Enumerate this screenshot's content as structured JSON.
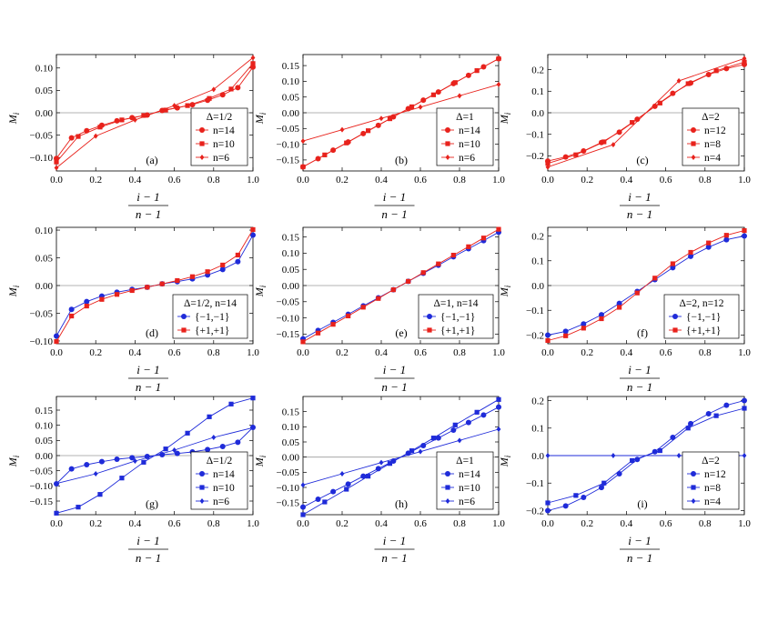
{
  "colors": {
    "red": "#e8221c",
    "blue": "#1f2bd9",
    "axis": "#000000",
    "zero": "#9a9a9a"
  },
  "ylabel": "M",
  "ylabel_sub": "i",
  "xlabel_num": "i − 1",
  "xlabel_den": "n − 1",
  "chart_data": [
    {
      "type": "line",
      "panel_label": "(a)",
      "xlim": [
        0,
        1
      ],
      "ylim": [
        -0.13,
        0.13
      ],
      "xticks": [
        "0.0",
        "0.2",
        "0.4",
        "0.6",
        "0.8",
        "1.0"
      ],
      "xtick_vals": [
        0,
        0.2,
        0.4,
        0.6,
        0.8,
        1.0
      ],
      "yticks": [
        "−0.10",
        "−0.05",
        "0.00",
        "0.05",
        "0.10"
      ],
      "ytick_vals": [
        -0.1,
        -0.05,
        0,
        0.05,
        0.1
      ],
      "legend_title": "Δ=1/2",
      "legend_pos": "bottom-right",
      "color": "red",
      "series": [
        {
          "name": "n=14",
          "marker": "circle",
          "x": [
            0,
            0.077,
            0.154,
            0.231,
            0.308,
            0.385,
            0.462,
            0.538,
            0.615,
            0.692,
            0.769,
            0.846,
            0.923,
            1.0
          ],
          "y": [
            -0.102,
            -0.056,
            -0.04,
            -0.028,
            -0.018,
            -0.011,
            -0.005,
            0.005,
            0.011,
            0.018,
            0.028,
            0.04,
            0.056,
            0.102
          ]
        },
        {
          "name": "n=10",
          "marker": "square",
          "x": [
            0,
            0.111,
            0.222,
            0.333,
            0.444,
            0.556,
            0.667,
            0.778,
            0.889,
            1.0
          ],
          "y": [
            -0.11,
            -0.053,
            -0.032,
            -0.016,
            -0.006,
            0.006,
            0.016,
            0.032,
            0.053,
            0.11
          ]
        },
        {
          "name": "n=6",
          "marker": "diamond",
          "x": [
            0,
            0.2,
            0.4,
            0.6,
            0.8,
            1.0
          ],
          "y": [
            -0.123,
            -0.052,
            -0.016,
            0.016,
            0.052,
            0.123
          ]
        }
      ]
    },
    {
      "type": "line",
      "panel_label": "(b)",
      "xlim": [
        0,
        1
      ],
      "ylim": [
        -0.185,
        0.185
      ],
      "xticks": [
        "0.0",
        "0.2",
        "0.4",
        "0.6",
        "0.8",
        "1.0"
      ],
      "xtick_vals": [
        0,
        0.2,
        0.4,
        0.6,
        0.8,
        1.0
      ],
      "yticks": [
        "−0.15",
        "−0.10",
        "−0.05",
        "0.00",
        "0.05",
        "0.10",
        "0.15"
      ],
      "ytick_vals": [
        -0.15,
        -0.1,
        -0.05,
        0,
        0.05,
        0.1,
        0.15
      ],
      "legend_title": "Δ=1",
      "legend_pos": "bottom-right",
      "color": "red",
      "series": [
        {
          "name": "n=14",
          "marker": "circle",
          "x": [
            0,
            0.077,
            0.154,
            0.231,
            0.308,
            0.385,
            0.462,
            0.538,
            0.615,
            0.692,
            0.769,
            0.846,
            0.923,
            1.0
          ],
          "y": [
            -0.172,
            -0.146,
            -0.119,
            -0.093,
            -0.066,
            -0.04,
            -0.013,
            0.013,
            0.04,
            0.066,
            0.093,
            0.119,
            0.146,
            0.172
          ]
        },
        {
          "name": "n=10",
          "marker": "square",
          "x": [
            0,
            0.111,
            0.222,
            0.333,
            0.444,
            0.556,
            0.667,
            0.778,
            0.889,
            1.0
          ],
          "y": [
            -0.172,
            -0.134,
            -0.096,
            -0.057,
            -0.019,
            0.019,
            0.057,
            0.096,
            0.134,
            0.172
          ]
        },
        {
          "name": "n=6",
          "marker": "diamond",
          "x": [
            0,
            0.2,
            0.4,
            0.6,
            0.8,
            1.0
          ],
          "y": [
            -0.09,
            -0.054,
            -0.018,
            0.018,
            0.054,
            0.09
          ]
        }
      ]
    },
    {
      "type": "line",
      "panel_label": "(c)",
      "xlim": [
        0,
        1
      ],
      "ylim": [
        -0.27,
        0.27
      ],
      "xticks": [
        "0.0",
        "0.2",
        "0.4",
        "0.6",
        "0.8",
        "1.0"
      ],
      "xtick_vals": [
        0,
        0.2,
        0.4,
        0.6,
        0.8,
        1.0
      ],
      "yticks": [
        "−0.2",
        "−0.1",
        "0.0",
        "0.1",
        "0.2"
      ],
      "ytick_vals": [
        -0.2,
        -0.1,
        0,
        0.1,
        0.2
      ],
      "legend_title": "Δ=2",
      "legend_pos": "bottom-right",
      "color": "red",
      "series": [
        {
          "name": "n=12",
          "marker": "circle",
          "x": [
            0,
            0.091,
            0.182,
            0.273,
            0.364,
            0.455,
            0.545,
            0.636,
            0.727,
            0.818,
            0.909,
            1.0
          ],
          "y": [
            -0.224,
            -0.205,
            -0.177,
            -0.138,
            -0.09,
            -0.03,
            0.03,
            0.09,
            0.138,
            0.177,
            0.205,
            0.224
          ]
        },
        {
          "name": "n=8",
          "marker": "square",
          "x": [
            0,
            0.143,
            0.286,
            0.429,
            0.571,
            0.714,
            0.857,
            1.0
          ],
          "y": [
            -0.235,
            -0.195,
            -0.135,
            -0.045,
            0.045,
            0.135,
            0.195,
            0.235
          ]
        },
        {
          "name": "n=4",
          "marker": "diamond",
          "x": [
            0,
            0.333,
            0.667,
            1.0
          ],
          "y": [
            -0.252,
            -0.148,
            0.148,
            0.252
          ]
        }
      ]
    },
    {
      "type": "line",
      "panel_label": "(d)",
      "xlim": [
        0,
        1
      ],
      "ylim": [
        -0.105,
        0.105
      ],
      "xticks": [
        "0.0",
        "0.2",
        "0.4",
        "0.6",
        "0.8",
        "1.0"
      ],
      "xtick_vals": [
        0,
        0.2,
        0.4,
        0.6,
        0.8,
        1.0
      ],
      "yticks": [
        "−0.10",
        "−0.05",
        "0.00",
        "0.05",
        "0.10"
      ],
      "ytick_vals": [
        -0.1,
        -0.05,
        0,
        0.05,
        0.1
      ],
      "legend_title": "Δ=1/2, n=14",
      "legend_pos": "bottom-right",
      "series": [
        {
          "name": "{−1,−1}",
          "marker": "circle",
          "color": "blue",
          "x": [
            0,
            0.077,
            0.154,
            0.231,
            0.308,
            0.385,
            0.462,
            0.538,
            0.615,
            0.692,
            0.769,
            0.846,
            0.923,
            1.0
          ],
          "y": [
            -0.091,
            -0.043,
            -0.029,
            -0.019,
            -0.012,
            -0.007,
            -0.003,
            0.003,
            0.007,
            0.012,
            0.019,
            0.029,
            0.043,
            0.091
          ]
        },
        {
          "name": "{+1,+1}",
          "marker": "square",
          "color": "red",
          "x": [
            0,
            0.077,
            0.154,
            0.231,
            0.308,
            0.385,
            0.462,
            0.538,
            0.615,
            0.692,
            0.769,
            0.846,
            0.923,
            1.0
          ],
          "y": [
            -0.101,
            -0.055,
            -0.037,
            -0.025,
            -0.016,
            -0.009,
            -0.003,
            0.003,
            0.009,
            0.016,
            0.025,
            0.037,
            0.055,
            0.101
          ]
        }
      ]
    },
    {
      "type": "line",
      "panel_label": "(e)",
      "xlim": [
        0,
        1
      ],
      "ylim": [
        -0.18,
        0.18
      ],
      "xticks": [
        "0.0",
        "0.2",
        "0.4",
        "0.6",
        "0.8",
        "1.0"
      ],
      "xtick_vals": [
        0,
        0.2,
        0.4,
        0.6,
        0.8,
        1.0
      ],
      "yticks": [
        "−0.15",
        "−0.10",
        "−0.05",
        "0.00",
        "0.05",
        "0.10",
        "0.15"
      ],
      "ytick_vals": [
        -0.15,
        -0.1,
        -0.05,
        0,
        0.05,
        0.1,
        0.15
      ],
      "legend_title": "Δ=1, n=14",
      "legend_pos": "bottom-right",
      "series": [
        {
          "name": "{−1,−1}",
          "marker": "circle",
          "color": "blue",
          "x": [
            0,
            0.077,
            0.154,
            0.231,
            0.308,
            0.385,
            0.462,
            0.538,
            0.615,
            0.692,
            0.769,
            0.846,
            0.923,
            1.0
          ],
          "y": [
            -0.165,
            -0.139,
            -0.114,
            -0.089,
            -0.063,
            -0.038,
            -0.013,
            0.013,
            0.038,
            0.063,
            0.089,
            0.114,
            0.139,
            0.165
          ]
        },
        {
          "name": "{+1,+1}",
          "marker": "square",
          "color": "red",
          "x": [
            0,
            0.077,
            0.154,
            0.231,
            0.308,
            0.385,
            0.462,
            0.538,
            0.615,
            0.692,
            0.769,
            0.846,
            0.923,
            1.0
          ],
          "y": [
            -0.174,
            -0.147,
            -0.12,
            -0.094,
            -0.067,
            -0.04,
            -0.013,
            0.013,
            0.04,
            0.067,
            0.094,
            0.12,
            0.147,
            0.174
          ]
        }
      ]
    },
    {
      "type": "line",
      "panel_label": "(f)",
      "xlim": [
        0,
        1
      ],
      "ylim": [
        -0.235,
        0.235
      ],
      "xticks": [
        "0.0",
        "0.2",
        "0.4",
        "0.6",
        "0.8",
        "1.0"
      ],
      "xtick_vals": [
        0,
        0.2,
        0.4,
        0.6,
        0.8,
        1.0
      ],
      "yticks": [
        "−0.2",
        "−0.1",
        "0.0",
        "0.1",
        "0.2"
      ],
      "ytick_vals": [
        -0.2,
        -0.1,
        0,
        0.1,
        0.2
      ],
      "legend_title": "Δ=2, n=12",
      "legend_pos": "bottom-right",
      "series": [
        {
          "name": "{−1,−1}",
          "marker": "circle",
          "color": "blue",
          "x": [
            0,
            0.091,
            0.182,
            0.273,
            0.364,
            0.455,
            0.545,
            0.636,
            0.727,
            0.818,
            0.909,
            1.0
          ],
          "y": [
            -0.2,
            -0.185,
            -0.155,
            -0.118,
            -0.072,
            -0.024,
            0.024,
            0.072,
            0.118,
            0.155,
            0.185,
            0.2
          ]
        },
        {
          "name": "{+1,+1}",
          "marker": "square",
          "color": "red",
          "x": [
            0,
            0.091,
            0.182,
            0.273,
            0.364,
            0.455,
            0.545,
            0.636,
            0.727,
            0.818,
            0.909,
            1.0
          ],
          "y": [
            -0.222,
            -0.203,
            -0.172,
            -0.134,
            -0.088,
            -0.03,
            0.03,
            0.088,
            0.134,
            0.172,
            0.203,
            0.222
          ]
        }
      ]
    },
    {
      "type": "line",
      "panel_label": "(g)",
      "xlim": [
        0,
        1
      ],
      "ylim": [
        -0.195,
        0.195
      ],
      "xticks": [
        "0.0",
        "0.2",
        "0.4",
        "0.6",
        "0.8",
        "1.0"
      ],
      "xtick_vals": [
        0,
        0.2,
        0.4,
        0.6,
        0.8,
        1.0
      ],
      "yticks": [
        "−0.15",
        "−0.10",
        "−0.05",
        "0.00",
        "0.05",
        "0.10",
        "0.15"
      ],
      "ytick_vals": [
        -0.15,
        -0.1,
        -0.05,
        0,
        0.05,
        0.1,
        0.15
      ],
      "legend_title": "Δ=1/2",
      "legend_pos": "bottom-right",
      "color": "blue",
      "series": [
        {
          "name": "n=14",
          "marker": "circle",
          "x": [
            0,
            0.077,
            0.154,
            0.231,
            0.308,
            0.385,
            0.462,
            0.538,
            0.615,
            0.692,
            0.769,
            0.846,
            0.923,
            1.0
          ],
          "y": [
            -0.093,
            -0.044,
            -0.03,
            -0.02,
            -0.012,
            -0.007,
            -0.003,
            0.003,
            0.007,
            0.012,
            0.02,
            0.03,
            0.044,
            0.093
          ]
        },
        {
          "name": "n=10",
          "marker": "square",
          "x": [
            0,
            0.111,
            0.222,
            0.333,
            0.444,
            0.556,
            0.667,
            0.778,
            0.889,
            1.0
          ],
          "y": [
            -0.19,
            -0.17,
            -0.128,
            -0.074,
            -0.022,
            0.022,
            0.074,
            0.128,
            0.17,
            0.19
          ]
        },
        {
          "name": "n=6",
          "marker": "diamond",
          "x": [
            0,
            0.2,
            0.4,
            0.6,
            0.8,
            1.0
          ],
          "y": [
            -0.092,
            -0.06,
            -0.018,
            0.018,
            0.06,
            0.092
          ]
        }
      ]
    },
    {
      "type": "line",
      "panel_label": "(h)",
      "xlim": [
        0,
        1
      ],
      "ylim": [
        -0.19,
        0.2
      ],
      "xticks": [
        "0.0",
        "0.2",
        "0.4",
        "0.6",
        "0.8",
        "1.0"
      ],
      "xtick_vals": [
        0,
        0.2,
        0.4,
        0.6,
        0.8,
        1.0
      ],
      "yticks": [
        "−0.15",
        "−0.10",
        "−0.05",
        "0.00",
        "0.05",
        "0.10",
        "0.15"
      ],
      "ytick_vals": [
        -0.15,
        -0.1,
        -0.05,
        0,
        0.05,
        0.1,
        0.15
      ],
      "legend_title": "Δ=1",
      "legend_pos": "bottom-right",
      "color": "blue",
      "series": [
        {
          "name": "n=14",
          "marker": "circle",
          "x": [
            0,
            0.077,
            0.154,
            0.231,
            0.308,
            0.385,
            0.462,
            0.538,
            0.615,
            0.692,
            0.769,
            0.846,
            0.923,
            1.0
          ],
          "y": [
            -0.165,
            -0.139,
            -0.114,
            -0.089,
            -0.063,
            -0.038,
            -0.013,
            0.013,
            0.038,
            0.063,
            0.089,
            0.114,
            0.139,
            0.165
          ]
        },
        {
          "name": "n=10",
          "marker": "square",
          "x": [
            0,
            0.111,
            0.222,
            0.333,
            0.444,
            0.556,
            0.667,
            0.778,
            0.889,
            1.0
          ],
          "y": [
            -0.19,
            -0.148,
            -0.106,
            -0.063,
            -0.021,
            0.021,
            0.063,
            0.106,
            0.148,
            0.19
          ]
        },
        {
          "name": "n=6",
          "marker": "diamond",
          "x": [
            0,
            0.2,
            0.4,
            0.6,
            0.8,
            1.0
          ],
          "y": [
            -0.092,
            -0.055,
            -0.018,
            0.018,
            0.055,
            0.092
          ]
        }
      ]
    },
    {
      "type": "line",
      "panel_label": "(i)",
      "xlim": [
        0,
        1
      ],
      "ylim": [
        -0.215,
        0.215
      ],
      "xticks": [
        "0.0",
        "0.2",
        "0.4",
        "0.6",
        "0.8",
        "1.0"
      ],
      "xtick_vals": [
        0,
        0.2,
        0.4,
        0.6,
        0.8,
        1.0
      ],
      "yticks": [
        "−0.2",
        "−0.1",
        "0.0",
        "0.1",
        "0.2"
      ],
      "ytick_vals": [
        -0.2,
        -0.1,
        0,
        0.1,
        0.2
      ],
      "legend_title": "Δ=2",
      "legend_pos": "bottom-right",
      "color": "blue",
      "series": [
        {
          "name": "n=12",
          "marker": "circle",
          "x": [
            0,
            0.091,
            0.182,
            0.273,
            0.364,
            0.455,
            0.545,
            0.636,
            0.727,
            0.818,
            0.909,
            1.0
          ],
          "y": [
            -0.2,
            -0.183,
            -0.152,
            -0.116,
            -0.066,
            -0.014,
            0.014,
            0.066,
            0.116,
            0.152,
            0.183,
            0.2
          ]
        },
        {
          "name": "n=8",
          "marker": "square",
          "x": [
            0,
            0.143,
            0.286,
            0.429,
            0.571,
            0.714,
            0.857,
            1.0
          ],
          "y": [
            -0.172,
            -0.145,
            -0.1,
            -0.018,
            0.018,
            0.1,
            0.145,
            0.172
          ]
        },
        {
          "name": "n=4",
          "marker": "diamond",
          "x": [
            0,
            0.333,
            0.667,
            1.0
          ],
          "y": [
            0,
            0,
            0,
            0
          ]
        }
      ]
    }
  ]
}
